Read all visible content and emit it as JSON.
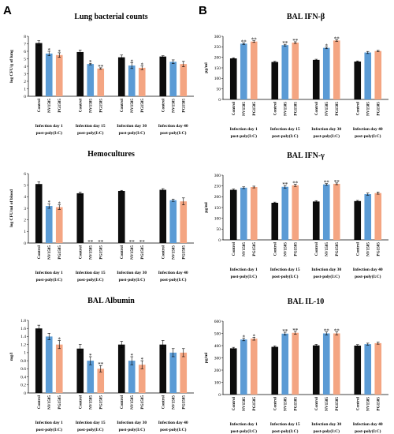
{
  "panels": {
    "A": "A",
    "B": "B"
  },
  "colors": {
    "control": "#0d0d0d",
    "NV1505": "#5b9bd5",
    "PG1505": "#f4a582"
  },
  "chart_data": [
    {
      "type": "bar",
      "title": "Lung bacterial counts",
      "ylabel": "log CFU/g of lung",
      "ylim": [
        0,
        8
      ],
      "ytick_step": 1,
      "groups": [
        "Infection day 1\npost-poly(I:C)",
        "Infection day 15\npost-poly(I:C)",
        "Infection day 30\npost-poly(I:C)",
        "Infection day 40\npost-poly(I:C)"
      ],
      "categories": [
        "Control",
        "NV1505",
        "PG1505"
      ],
      "values": [
        [
          7.1,
          5.7,
          5.5
        ],
        [
          5.9,
          4.3,
          3.7
        ],
        [
          5.2,
          4.1,
          3.8
        ],
        [
          5.3,
          4.6,
          4.3
        ]
      ],
      "errors": [
        [
          0.3,
          0.3,
          0.3
        ],
        [
          0.25,
          0.1,
          0.1
        ],
        [
          0.3,
          0.4,
          0.25
        ],
        [
          0.1,
          0.25,
          0.35
        ]
      ],
      "significance": [
        [
          "",
          "*",
          "*"
        ],
        [
          "",
          "*",
          "**"
        ],
        [
          "",
          "*",
          "*"
        ],
        [
          "",
          "",
          ""
        ]
      ]
    },
    {
      "type": "bar",
      "title": "Hemocultures",
      "ylabel": "log CFU/ml of blood",
      "ylim": [
        0,
        6
      ],
      "ytick_step": 1,
      "groups": [
        "Infection day 1\npost-poly(I:C)",
        "Infection day 15\npost-poly(I:C)",
        "Infection day 30\npost-poly(I:C)",
        "Infection day 40\npost-poly(I:C)"
      ],
      "categories": [
        "Control",
        "NV1505",
        "PG1505"
      ],
      "values": [
        [
          5.1,
          3.2,
          3.1
        ],
        [
          4.3,
          0,
          0
        ],
        [
          4.5,
          0,
          0
        ],
        [
          4.6,
          3.7,
          3.6
        ]
      ],
      "errors": [
        [
          0.2,
          0.2,
          0.2
        ],
        [
          0.1,
          0,
          0
        ],
        [
          0.05,
          0,
          0
        ],
        [
          0.1,
          0.1,
          0.3
        ]
      ],
      "significance": [
        [
          "",
          "*",
          "*"
        ],
        [
          "",
          "**",
          "**"
        ],
        [
          "",
          "**",
          "**"
        ],
        [
          "",
          "",
          ""
        ]
      ]
    },
    {
      "type": "bar",
      "title": "BAL Albumin",
      "ylabel": "mg/l",
      "ylim": [
        0,
        1.8
      ],
      "ytick_step": 0.2,
      "groups": [
        "Infection day 1\npost-poly(I:C)",
        "Infection day 15\npost-poly(I:C)",
        "Infection day 30\npost-poly(I:C)",
        "Infection day 40\npost-poly(I:C)"
      ],
      "categories": [
        "Control",
        "NV1505",
        "PG1505"
      ],
      "values": [
        [
          1.6,
          1.4,
          1.2
        ],
        [
          1.1,
          0.8,
          0.6
        ],
        [
          1.2,
          0.8,
          0.7
        ],
        [
          1.2,
          1.0,
          1.0
        ]
      ],
      "errors": [
        [
          0.08,
          0.08,
          0.1
        ],
        [
          0.1,
          0.1,
          0.08
        ],
        [
          0.08,
          0.1,
          0.1
        ],
        [
          0.1,
          0.1,
          0.1
        ]
      ],
      "significance": [
        [
          "",
          "",
          "*"
        ],
        [
          "",
          "*",
          "**"
        ],
        [
          "",
          "*",
          "*"
        ],
        [
          "",
          "",
          ""
        ]
      ]
    },
    {
      "type": "bar",
      "title": "BAL IFN-β",
      "ylabel": "pg/ml",
      "ylim": [
        0,
        300
      ],
      "ytick_step": 50,
      "groups": [
        "Infection day 1\npost-poly(I:C)",
        "Infection day 15\npost-poly(I:C)",
        "Infection day 30\npost-poly(I:C)",
        "Infection day 40\npost-poly(I:C)"
      ],
      "categories": [
        "Control",
        "NV1505",
        "PG1505"
      ],
      "values": [
        [
          195,
          265,
          275
        ],
        [
          178,
          258,
          270
        ],
        [
          188,
          245,
          280
        ],
        [
          180,
          223,
          230
        ]
      ],
      "errors": [
        [
          3,
          4,
          4
        ],
        [
          3,
          4,
          4
        ],
        [
          3,
          4,
          4
        ],
        [
          3,
          5,
          3
        ]
      ],
      "significance": [
        [
          "",
          "**",
          "**"
        ],
        [
          "",
          "**",
          "**"
        ],
        [
          "",
          "*",
          "**"
        ],
        [
          "",
          "",
          ""
        ]
      ]
    },
    {
      "type": "bar",
      "title": "BAL IFN-γ",
      "ylabel": "pg/ml",
      "ylim": [
        0,
        300
      ],
      "ytick_step": 50,
      "yticks": [
        0,
        50,
        100,
        150,
        200,
        250,
        300
      ],
      "groups": [
        "Infection day 1\npost-poly(I:C)",
        "Infection day 15\npost-poly(I:C)",
        "Infection day 30\npost-poly(I:C)",
        "Infection day 40\npost-poly(I:C)"
      ],
      "categories": [
        "Control",
        "NV1505",
        "PG1505"
      ],
      "values": [
        [
          232,
          242,
          245
        ],
        [
          172,
          246,
          253
        ],
        [
          178,
          257,
          260
        ],
        [
          180,
          212,
          217
        ]
      ],
      "errors": [
        [
          4,
          4,
          4
        ],
        [
          3,
          6,
          5
        ],
        [
          4,
          4,
          4
        ],
        [
          3,
          5,
          5
        ]
      ],
      "significance": [
        [
          "",
          "",
          ""
        ],
        [
          "",
          "**",
          "**"
        ],
        [
          "",
          "**",
          "**"
        ],
        [
          "",
          "",
          ""
        ]
      ]
    },
    {
      "type": "bar",
      "title": "BAL IL-10",
      "ylabel": "pg/ml",
      "ylim": [
        0,
        600
      ],
      "ytick_step": 100,
      "groups": [
        "Infection day 1\npost-poly(I:C)",
        "Infection day 15\npost-poly(I:C)",
        "Infection day 30\npost-poly(I:C)",
        "Infection day 40\npost-poly(I:C)"
      ],
      "categories": [
        "Control",
        "NV1505",
        "PG1505"
      ],
      "values": [
        [
          378,
          450,
          457
        ],
        [
          390,
          498,
          505
        ],
        [
          402,
          500,
          500
        ],
        [
          400,
          412,
          420
        ]
      ],
      "errors": [
        [
          8,
          10,
          12
        ],
        [
          8,
          12,
          12
        ],
        [
          8,
          12,
          12
        ],
        [
          8,
          8,
          8
        ]
      ],
      "significance": [
        [
          "",
          "*",
          "*"
        ],
        [
          "",
          "**",
          "**"
        ],
        [
          "",
          "**",
          "**"
        ],
        [
          "",
          "",
          ""
        ]
      ]
    }
  ]
}
